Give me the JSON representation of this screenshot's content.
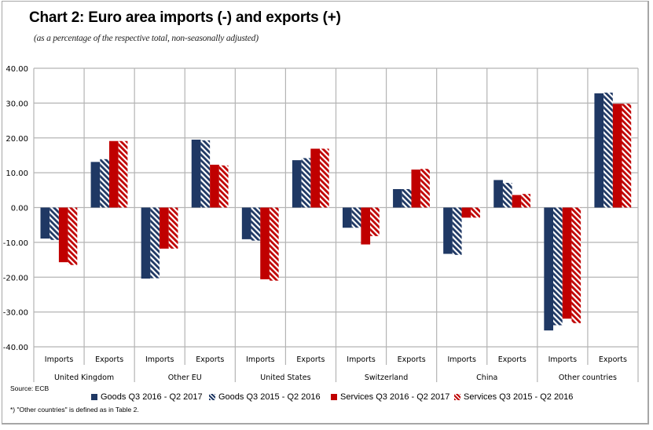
{
  "colors": {
    "goods": "#1f3864",
    "services": "#c00000",
    "grid": "#b4b4b4"
  },
  "source": "Source: ECB",
  "note": "*) \"Other countries\" is defined as in Table 2.",
  "chart_data": {
    "type": "bar",
    "title": "Chart 2: Euro area imports (-) and exports (+)",
    "subtitle": "(as a percentage of the respective total, non-seasonally adjusted)",
    "xlabel": "",
    "ylabel": "",
    "ylim": [
      -40,
      40
    ],
    "yticks": [
      40,
      30,
      20,
      10,
      0,
      -10,
      -20,
      -30,
      -40
    ],
    "ytick_labels": [
      "40.00",
      "30.00",
      "20.00",
      "10.00",
      "0.00",
      "-10.00",
      "-20.00",
      "-30.00",
      "-40.00"
    ],
    "grid": true,
    "legend_position": "bottom",
    "groups": [
      "United Kingdom",
      "Other EU",
      "United States",
      "Switzerland",
      "China",
      "Other countries"
    ],
    "subcategories": [
      "Imports",
      "Exports"
    ],
    "categories": [
      "United Kingdom Imports",
      "United Kingdom Exports",
      "Other EU Imports",
      "Other EU Exports",
      "United States Imports",
      "United States Exports",
      "Switzerland Imports",
      "Switzerland Exports",
      "China Imports",
      "China Exports",
      "Other countries Imports",
      "Other countries Exports"
    ],
    "series": [
      {
        "name": "Goods Q3 2016 - Q2 2017",
        "color": "#1f3864",
        "pattern": "solid",
        "values": [
          -8.9,
          13.1,
          -20.4,
          19.5,
          -9.1,
          13.6,
          -5.8,
          5.3,
          -13.3,
          7.9,
          -35.3,
          32.8
        ]
      },
      {
        "name": "Goods Q3 2015 - Q2 2016",
        "color": "#1f3864",
        "pattern": "hatched",
        "values": [
          -9.3,
          13.9,
          -20.3,
          19.3,
          -9.5,
          14.2,
          -5.8,
          5.3,
          -13.6,
          7.1,
          -33.8,
          33.0
        ]
      },
      {
        "name": "Services Q3 2016 - Q2 2017",
        "color": "#c00000",
        "pattern": "solid",
        "values": [
          -15.7,
          19.1,
          -11.8,
          12.3,
          -20.6,
          16.9,
          -10.6,
          10.9,
          -2.9,
          3.6,
          -31.9,
          29.8
        ]
      },
      {
        "name": "Services Q3 2015 - Q2 2016",
        "color": "#c00000",
        "pattern": "hatched",
        "values": [
          -16.5,
          19.1,
          -11.8,
          12.1,
          -21.0,
          16.9,
          -8.2,
          11.1,
          -2.9,
          3.9,
          -33.2,
          29.8
        ]
      }
    ]
  }
}
